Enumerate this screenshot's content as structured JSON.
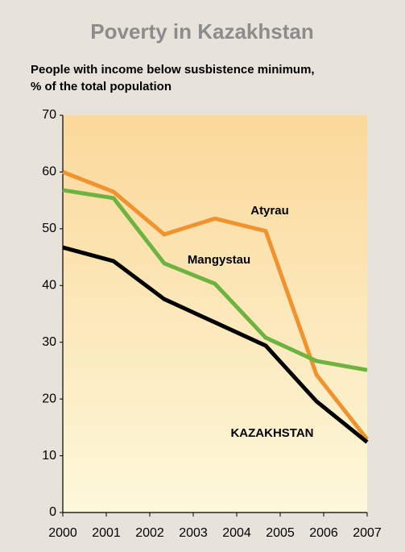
{
  "chart_data": {
    "type": "line",
    "title": "Poverty in Kazakhstan",
    "subtitle": [
      "People with income below susbistence minimum,",
      "% of the total population"
    ],
    "x": [
      2000,
      2001.167,
      2002.333,
      2003.5,
      2004.667,
      2005.833,
      2007
    ],
    "series": [
      {
        "name": "Atyrau",
        "color": "#f0922e",
        "values": [
          60,
          56.5,
          49,
          51.8,
          49.6,
          24.3,
          12.9
        ]
      },
      {
        "name": "Mangystau",
        "color": "#6db33f",
        "values": [
          56.8,
          55.4,
          43.9,
          40.3,
          30.8,
          26.7,
          25.1
        ]
      },
      {
        "name": "KAZAKHSTAN",
        "color": "#000000",
        "values": [
          46.7,
          44.3,
          37.6,
          33.5,
          29.4,
          19.6,
          12.4
        ]
      }
    ],
    "xlim": [
      2000,
      2007
    ],
    "xticks": [
      2000,
      2001,
      2002,
      2003,
      2004,
      2005,
      2006,
      2007
    ],
    "ylim": [
      0,
      70
    ],
    "yticks": [
      0,
      10,
      20,
      30,
      40,
      50,
      60,
      70
    ],
    "grid": false
  }
}
